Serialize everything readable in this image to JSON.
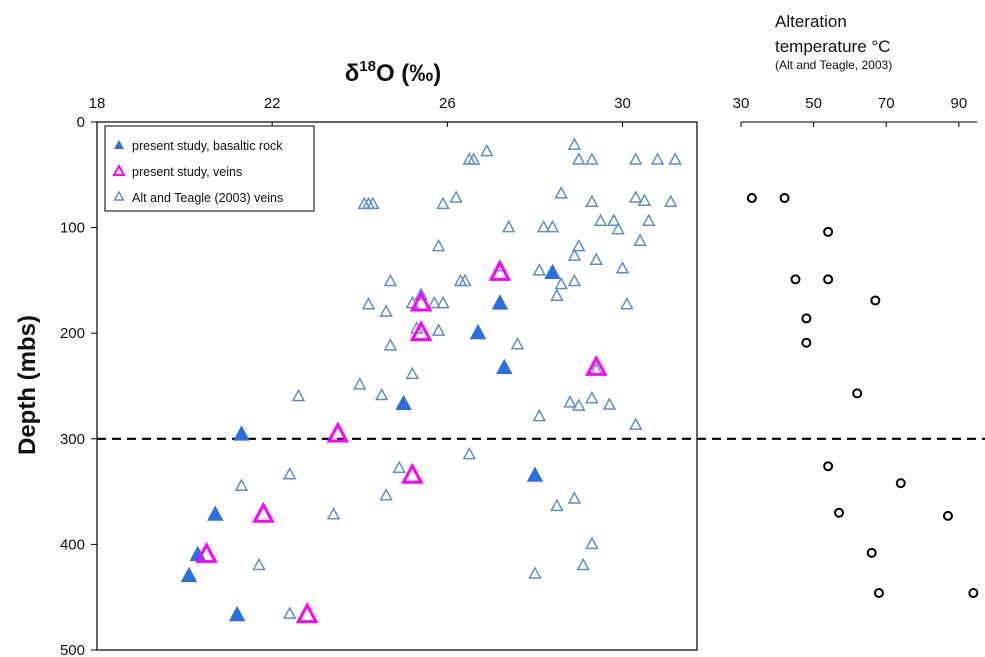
{
  "chart_data": [
    {
      "type": "scatter",
      "title": "",
      "xlabel": "δ18O (‰)",
      "ylabel": "Depth (mbs)",
      "xlim": [
        18,
        31.7
      ],
      "ylim": [
        0,
        500
      ],
      "y_reversed": true,
      "x_ticks": [
        "18",
        "22",
        "26",
        "30"
      ],
      "y_ticks": [
        "0",
        "100",
        "200",
        "300",
        "400",
        "500"
      ],
      "legend_position": "top-left",
      "reference_line": {
        "y": 300,
        "style": "dashed"
      },
      "series": [
        {
          "name": "present study, basaltic rock",
          "marker": "filled-triangle",
          "color": "#2b6fe0",
          "points": [
            [
              28.4,
              143
            ],
            [
              27.2,
              172
            ],
            [
              26.7,
              200
            ],
            [
              27.3,
              233
            ],
            [
              25.0,
              267
            ],
            [
              21.3,
              296
            ],
            [
              28.0,
              335
            ],
            [
              20.7,
              372
            ],
            [
              20.3,
              410
            ],
            [
              20.1,
              430
            ],
            [
              21.2,
              467
            ]
          ]
        },
        {
          "name": "present study, veins",
          "marker": "open-triangle",
          "color": "#ff00ff",
          "points": [
            [
              27.2,
              143
            ],
            [
              25.4,
              172
            ],
            [
              25.4,
              200
            ],
            [
              29.4,
              233
            ],
            [
              23.5,
              296
            ],
            [
              25.2,
              335
            ],
            [
              21.8,
              372
            ],
            [
              20.5,
              410
            ],
            [
              22.8,
              467
            ]
          ]
        },
        {
          "name": "Alt and Teagle (2003) veins",
          "marker": "open-triangle",
          "color": "#5b8fcf",
          "points": [
            [
              28.9,
              22
            ],
            [
              26.9,
              28
            ],
            [
              26.5,
              36
            ],
            [
              26.6,
              36
            ],
            [
              29.0,
              36
            ],
            [
              29.3,
              36
            ],
            [
              30.3,
              36
            ],
            [
              30.8,
              36
            ],
            [
              31.2,
              36
            ],
            [
              28.6,
              68
            ],
            [
              26.2,
              72
            ],
            [
              30.3,
              72
            ],
            [
              25.9,
              78
            ],
            [
              24.1,
              78
            ],
            [
              24.2,
              78
            ],
            [
              24.3,
              78
            ],
            [
              29.3,
              76
            ],
            [
              30.5,
              75
            ],
            [
              31.1,
              76
            ],
            [
              29.5,
              94
            ],
            [
              29.8,
              94
            ],
            [
              30.6,
              94
            ],
            [
              27.4,
              100
            ],
            [
              28.2,
              100
            ],
            [
              28.4,
              100
            ],
            [
              29.9,
              102
            ],
            [
              30.4,
              113
            ],
            [
              25.8,
              118
            ],
            [
              29.0,
              118
            ],
            [
              28.9,
              127
            ],
            [
              29.4,
              131
            ],
            [
              27.2,
              137
            ],
            [
              28.1,
              141
            ],
            [
              30.0,
              139
            ],
            [
              26.3,
              151
            ],
            [
              26.4,
              151
            ],
            [
              24.7,
              151
            ],
            [
              28.9,
              151
            ],
            [
              28.6,
              154
            ],
            [
              25.4,
              164
            ],
            [
              28.5,
              165
            ],
            [
              24.2,
              173
            ],
            [
              25.2,
              172
            ],
            [
              25.7,
              172
            ],
            [
              25.9,
              172
            ],
            [
              30.1,
              173
            ],
            [
              24.6,
              180
            ],
            [
              25.3,
              196
            ],
            [
              25.8,
              198
            ],
            [
              24.7,
              212
            ],
            [
              27.6,
              211
            ],
            [
              25.2,
              239
            ],
            [
              29.4,
              235
            ],
            [
              24.0,
              249
            ],
            [
              22.6,
              260
            ],
            [
              24.5,
              259
            ],
            [
              28.8,
              266
            ],
            [
              29.0,
              269
            ],
            [
              29.3,
              262
            ],
            [
              29.7,
              268
            ],
            [
              28.1,
              279
            ],
            [
              30.3,
              287
            ],
            [
              26.5,
              315
            ],
            [
              24.9,
              328
            ],
            [
              22.4,
              334
            ],
            [
              21.3,
              345
            ],
            [
              24.6,
              354
            ],
            [
              28.9,
              357
            ],
            [
              28.5,
              364
            ],
            [
              23.4,
              372
            ],
            [
              29.3,
              400
            ],
            [
              21.7,
              420
            ],
            [
              29.1,
              420
            ],
            [
              28.0,
              428
            ],
            [
              22.4,
              466
            ]
          ]
        }
      ]
    },
    {
      "type": "scatter",
      "title": "",
      "xlabel": "Alteration\ntemperature °C\n(Alt and Teagle, 2003)",
      "ylabel": "",
      "xlim": [
        30,
        95
      ],
      "ylim": [
        0,
        500
      ],
      "y_reversed": true,
      "x_ticks": [
        "30",
        "50",
        "70",
        "90"
      ],
      "legend_position": "none",
      "series": [
        {
          "name": "",
          "marker": "open-circle",
          "color": "#000000",
          "points": [
            [
              33,
              72
            ],
            [
              42,
              72
            ],
            [
              54,
              104
            ],
            [
              45,
              149
            ],
            [
              54,
              149
            ],
            [
              67,
              169
            ],
            [
              48,
              186
            ],
            [
              48,
              209
            ],
            [
              62,
              257
            ],
            [
              54,
              326
            ],
            [
              74,
              342
            ],
            [
              57,
              370
            ],
            [
              87,
              373
            ],
            [
              66,
              408
            ],
            [
              68,
              446
            ],
            [
              94,
              446
            ]
          ]
        }
      ]
    }
  ],
  "labels": {
    "x_title_delta": "δ",
    "x_title_sup": "18",
    "x_title_rest": "O (‰)",
    "y_title": "Depth (mbs)",
    "temp_title_line1": "Alteration",
    "temp_title_line2": "temperature °C",
    "temp_subtitle": "(Alt and Teagle, 2003)"
  }
}
